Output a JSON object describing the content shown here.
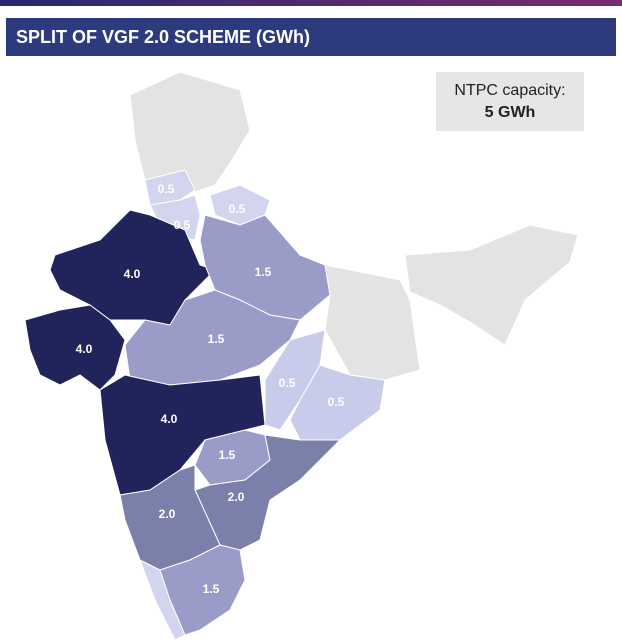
{
  "header": {
    "title": "SPLIT OF VGF 2.0 SCHEME (GWh)"
  },
  "note": {
    "line1": "NTPC capacity:",
    "line2": "5 GWh"
  },
  "regions": [
    {
      "label": "0.5",
      "color": "#d3d5ee"
    },
    {
      "label": "0.5",
      "color": "#d3d5ee"
    },
    {
      "label": "0.5",
      "color": "#d3d5ee"
    },
    {
      "label": "4.0",
      "color": "#20245a"
    },
    {
      "label": "1.5",
      "color": "#9a9cc8"
    },
    {
      "label": "4.0",
      "color": "#20245a"
    },
    {
      "label": "1.5",
      "color": "#9a9cc8"
    },
    {
      "label": "0.5",
      "color": "#c9cbea"
    },
    {
      "label": "0.5",
      "color": "#c9cbea"
    },
    {
      "label": "4.0",
      "color": "#20245a"
    },
    {
      "label": "1.5",
      "color": "#9a9cc8"
    },
    {
      "label": "2.0",
      "color": "#7a80aa"
    },
    {
      "label": "2.0",
      "color": "#7a80aa"
    },
    {
      "label": "1.5",
      "color": "#9a9cc8"
    }
  ]
}
